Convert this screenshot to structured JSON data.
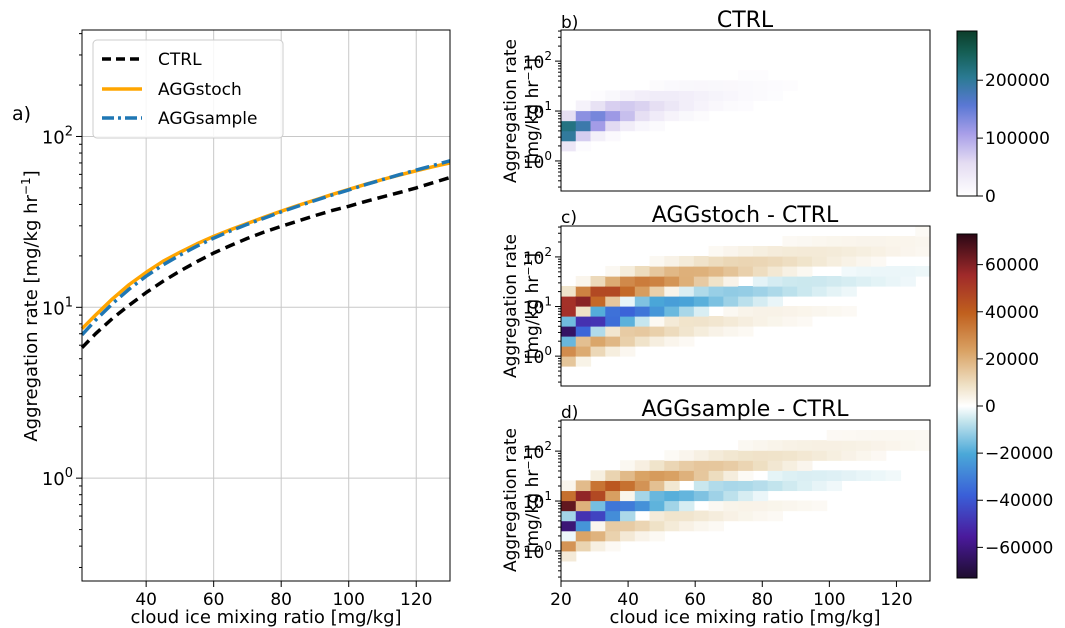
{
  "chart_data": [
    {
      "id": "a",
      "panel_label": "a)",
      "type": "line",
      "title": "",
      "xlabel": "cloud ice mixing ratio [mg/kg]",
      "ylabel": "Aggregation rate [mg/kg hr",
      "ylabel_sup": "−1",
      "ylabel_end": "]",
      "xlim": [
        21,
        130
      ],
      "ylim": [
        0.25,
        420
      ],
      "yscale": "log",
      "xticks": [
        40,
        60,
        80,
        100,
        120
      ],
      "yticks": [
        1,
        10,
        100
      ],
      "ytick_base": "10",
      "ytick_exps": [
        "0",
        "1",
        "2"
      ],
      "grid": true,
      "legend_position": "upper left",
      "series": [
        {
          "name": "CTRL",
          "color": "#000000",
          "style": "dashed",
          "x": [
            21,
            25,
            30,
            35,
            40,
            45,
            50,
            55,
            60,
            65,
            70,
            75,
            80,
            85,
            90,
            95,
            100,
            105,
            110,
            115,
            120,
            125,
            130
          ],
          "y": [
            5.8,
            7.0,
            8.6,
            10.3,
            12.2,
            14.2,
            16.3,
            18.5,
            20.8,
            23.0,
            25.3,
            27.6,
            29.8,
            32.0,
            34.4,
            36.8,
            39.0,
            41.7,
            44.3,
            47.0,
            50.0,
            53.6,
            57.5
          ]
        },
        {
          "name": "AGGstoch",
          "color": "#ffa500",
          "style": "solid",
          "x": [
            21,
            25,
            30,
            35,
            40,
            45,
            50,
            55,
            60,
            65,
            70,
            75,
            80,
            85,
            90,
            95,
            100,
            105,
            110,
            115,
            120,
            125,
            130
          ],
          "y": [
            7.5,
            9.0,
            11.2,
            13.6,
            16.0,
            18.6,
            21.0,
            23.5,
            26.0,
            28.5,
            31.0,
            33.7,
            36.5,
            39.5,
            42.5,
            45.7,
            49.0,
            52.5,
            56.0,
            59.5,
            63.0,
            66.5,
            70.0
          ]
        },
        {
          "name": "AGGsample",
          "color": "#1f77b4",
          "style": "dashdot",
          "x": [
            21,
            25,
            30,
            35,
            40,
            45,
            50,
            55,
            60,
            65,
            70,
            75,
            80,
            85,
            90,
            95,
            100,
            105,
            110,
            115,
            120,
            125,
            130
          ],
          "y": [
            6.9,
            8.4,
            10.5,
            12.8,
            15.2,
            17.7,
            20.2,
            22.8,
            25.4,
            28.0,
            30.6,
            33.3,
            36.2,
            39.1,
            42.2,
            45.4,
            48.7,
            52.3,
            55.9,
            59.7,
            63.6,
            67.6,
            72.0
          ]
        }
      ]
    },
    {
      "id": "b",
      "panel_label": "b)",
      "type": "heatmap",
      "title": "CTRL",
      "xlabel": "",
      "ylabel_line1": "Aggregation rate",
      "ylabel_line2": "[mg/kg hr",
      "ylabel_sup": "−1",
      "ylabel_end": "]",
      "xlim": [
        20,
        130
      ],
      "ylim": [
        0.25,
        420
      ],
      "yscale": "log",
      "ytick_base": "10",
      "ytick_exps": [
        "0",
        "1",
        "2"
      ],
      "colormap": "white-purple-teal-green",
      "vmin": 0,
      "vmax": 285000,
      "colorbar_ticks": [
        "0",
        "100000",
        "200000"
      ],
      "colorbar_values": [
        0,
        100000,
        200000
      ],
      "values_description": "counts per bin; densest near small mixing ratio and rate ~1-10"
    },
    {
      "id": "c",
      "panel_label": "c)",
      "type": "heatmap",
      "title": "AGGstoch - CTRL",
      "xlabel": "",
      "ylabel_line1": "Aggregation rate",
      "ylabel_line2": "[mg/kg hr",
      "ylabel_sup": "−1",
      "ylabel_end": "]",
      "xlim": [
        20,
        130
      ],
      "ylim": [
        0.25,
        420
      ],
      "yscale": "log",
      "ytick_base": "10",
      "ytick_exps": [
        "0",
        "1",
        "2"
      ],
      "colormap": "diverging",
      "vmin": -73000,
      "vmax": 73000,
      "colorbar_ticks": [
        "60000",
        "40000",
        "20000",
        "0",
        "−20000",
        "−40000",
        "−60000"
      ],
      "colorbar_values": [
        60000,
        40000,
        20000,
        0,
        -20000,
        -40000,
        -60000
      ]
    },
    {
      "id": "d",
      "panel_label": "d)",
      "type": "heatmap",
      "title": "AGGsample - CTRL",
      "xlabel": "cloud ice mixing ratio [mg/kg]",
      "ylabel_line1": "Aggregation rate",
      "ylabel_line2": "[mg/kg hr",
      "ylabel_sup": "−1",
      "ylabel_end": "]",
      "xlim": [
        20,
        130
      ],
      "ylim": [
        0.25,
        420
      ],
      "yscale": "log",
      "xticks": [
        20,
        40,
        60,
        80,
        100,
        120
      ],
      "ytick_base": "10",
      "ytick_exps": [
        "0",
        "1",
        "2"
      ],
      "colormap": "diverging",
      "vmin": -73000,
      "vmax": 73000
    }
  ]
}
